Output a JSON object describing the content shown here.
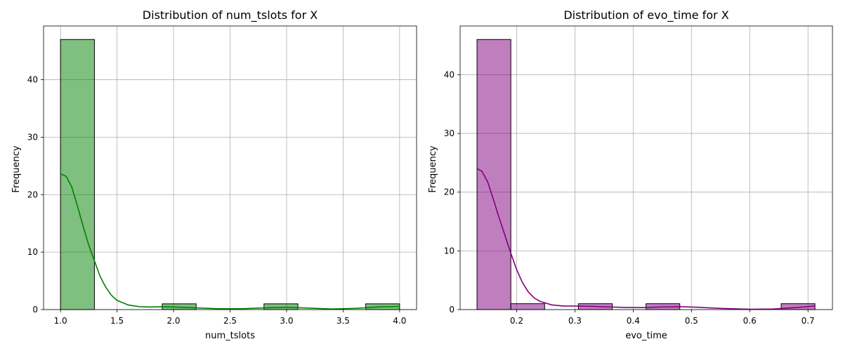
{
  "chart_data": [
    {
      "type": "bar",
      "title": "Distribution of num_tslots for X",
      "xlabel": "num_tslots",
      "ylabel": "Frequency",
      "xlim": [
        0.85,
        4.15
      ],
      "ylim": [
        0,
        49.35
      ],
      "xticks": [
        1.0,
        1.5,
        2.0,
        2.5,
        3.0,
        3.5,
        4.0
      ],
      "xtick_labels": [
        "1.0",
        "1.5",
        "2.0",
        "2.5",
        "3.0",
        "3.5",
        "4.0"
      ],
      "yticks": [
        0,
        10,
        20,
        30,
        40
      ],
      "ytick_labels": [
        "0",
        "10",
        "20",
        "30",
        "40"
      ],
      "grid": true,
      "color": "#008000",
      "bins": [
        {
          "x0": 1.0,
          "x1": 1.3,
          "count": 47
        },
        {
          "x0": 1.3,
          "x1": 1.6,
          "count": 0
        },
        {
          "x0": 1.6,
          "x1": 1.9,
          "count": 0
        },
        {
          "x0": 1.9,
          "x1": 2.2,
          "count": 1
        },
        {
          "x0": 2.2,
          "x1": 2.5,
          "count": 0
        },
        {
          "x0": 2.5,
          "x1": 2.8,
          "count": 0
        },
        {
          "x0": 2.8,
          "x1": 3.1,
          "count": 1
        },
        {
          "x0": 3.1,
          "x1": 3.4,
          "count": 0
        },
        {
          "x0": 3.4,
          "x1": 3.7,
          "count": 0
        },
        {
          "x0": 3.7,
          "x1": 4.0,
          "count": 1
        }
      ],
      "kde": [
        [
          1.0,
          23.6
        ],
        [
          1.05,
          23.2
        ],
        [
          1.1,
          21.3
        ],
        [
          1.15,
          18.0
        ],
        [
          1.2,
          14.5
        ],
        [
          1.25,
          11.2
        ],
        [
          1.3,
          8.5
        ],
        [
          1.35,
          5.8
        ],
        [
          1.4,
          3.9
        ],
        [
          1.45,
          2.5
        ],
        [
          1.5,
          1.6
        ],
        [
          1.6,
          0.8
        ],
        [
          1.7,
          0.5
        ],
        [
          1.8,
          0.45
        ],
        [
          1.9,
          0.5
        ],
        [
          2.0,
          0.45
        ],
        [
          2.2,
          0.3
        ],
        [
          2.4,
          0.15
        ],
        [
          2.6,
          0.15
        ],
        [
          2.8,
          0.3
        ],
        [
          3.0,
          0.4
        ],
        [
          3.2,
          0.25
        ],
        [
          3.4,
          0.1
        ],
        [
          3.6,
          0.2
        ],
        [
          3.8,
          0.45
        ],
        [
          4.0,
          0.55
        ]
      ]
    },
    {
      "type": "bar",
      "title": "Distribution of evo_time for X",
      "xlabel": "evo_time",
      "ylabel": "Frequency",
      "xlim": [
        0.103,
        0.742
      ],
      "ylim": [
        0,
        48.3
      ],
      "xticks": [
        0.2,
        0.3,
        0.4,
        0.5,
        0.6,
        0.7
      ],
      "xtick_labels": [
        "0.2",
        "0.3",
        "0.4",
        "0.5",
        "0.6",
        "0.7"
      ],
      "yticks": [
        0,
        10,
        20,
        30,
        40
      ],
      "ytick_labels": [
        "0",
        "10",
        "20",
        "30",
        "40"
      ],
      "grid": true,
      "color": "#800080",
      "bins": [
        {
          "x0": 0.132,
          "x1": 0.19,
          "count": 46
        },
        {
          "x0": 0.19,
          "x1": 0.248,
          "count": 1
        },
        {
          "x0": 0.248,
          "x1": 0.306,
          "count": 0
        },
        {
          "x0": 0.306,
          "x1": 0.364,
          "count": 1
        },
        {
          "x0": 0.364,
          "x1": 0.422,
          "count": 0
        },
        {
          "x0": 0.422,
          "x1": 0.48,
          "count": 1
        },
        {
          "x0": 0.48,
          "x1": 0.538,
          "count": 0
        },
        {
          "x0": 0.538,
          "x1": 0.596,
          "count": 0
        },
        {
          "x0": 0.596,
          "x1": 0.654,
          "count": 0
        },
        {
          "x0": 0.654,
          "x1": 0.712,
          "count": 1
        }
      ],
      "kde": [
        [
          0.132,
          24.0
        ],
        [
          0.14,
          23.6
        ],
        [
          0.15,
          21.8
        ],
        [
          0.16,
          18.8
        ],
        [
          0.17,
          15.6
        ],
        [
          0.18,
          12.6
        ],
        [
          0.19,
          9.6
        ],
        [
          0.2,
          6.8
        ],
        [
          0.21,
          4.6
        ],
        [
          0.22,
          3.0
        ],
        [
          0.23,
          2.0
        ],
        [
          0.24,
          1.4
        ],
        [
          0.26,
          0.8
        ],
        [
          0.28,
          0.6
        ],
        [
          0.3,
          0.6
        ],
        [
          0.33,
          0.55
        ],
        [
          0.36,
          0.45
        ],
        [
          0.39,
          0.35
        ],
        [
          0.42,
          0.35
        ],
        [
          0.45,
          0.45
        ],
        [
          0.48,
          0.5
        ],
        [
          0.51,
          0.4
        ],
        [
          0.55,
          0.2
        ],
        [
          0.6,
          0.05
        ],
        [
          0.64,
          0.1
        ],
        [
          0.68,
          0.35
        ],
        [
          0.712,
          0.6
        ]
      ]
    }
  ]
}
